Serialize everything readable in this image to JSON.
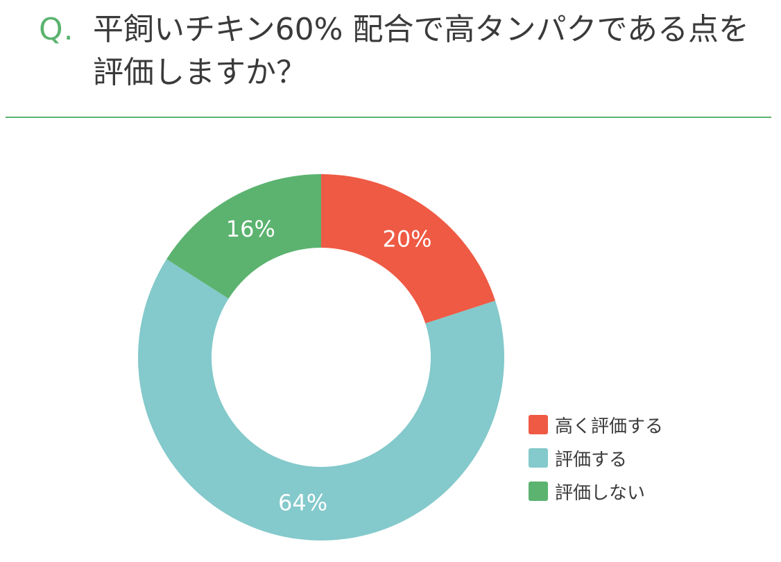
{
  "question": {
    "mark": "Q.",
    "text": "平飼いチキン60% 配合で高タンパクである点を評価しますか？"
  },
  "colors": {
    "accent": "#5bb36f",
    "text": "#3a3a3a"
  },
  "chart_data": {
    "type": "pie",
    "donut": true,
    "slices": [
      {
        "label": "高く評価する",
        "value": 20,
        "display": "20%",
        "color": "#ef5a44"
      },
      {
        "label": "評価する",
        "value": 64,
        "display": "64%",
        "color": "#84c9cb"
      },
      {
        "label": "評価しない",
        "value": 16,
        "display": "16%",
        "color": "#5bb36f"
      }
    ],
    "legend_position": "bottom-right"
  }
}
